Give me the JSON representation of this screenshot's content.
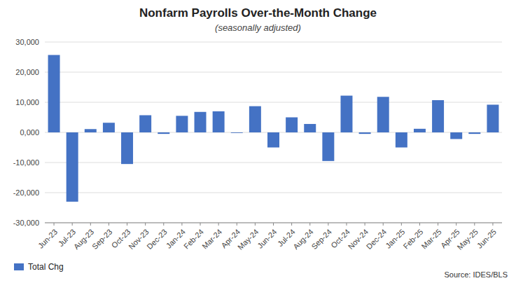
{
  "chart_data": {
    "type": "bar",
    "title": "Nonfarm Payrolls Over-the-Month Change",
    "subtitle": "(seasonally adjusted)",
    "annotations": [
      "Source: IDES/BLS"
    ],
    "categories": [
      "Jun-23",
      "Jul-23",
      "Aug-23",
      "Sep-23",
      "Oct-23",
      "Nov-23",
      "Dec-23",
      "Jan-24",
      "Feb-24",
      "Mar-24",
      "Apr-24",
      "May-24",
      "Jun-24",
      "Jul-24",
      "Aug-24",
      "Sep-24",
      "Oct-24",
      "Nov-24",
      "Dec-24",
      "Jan-25",
      "Feb-25",
      "Mar-25",
      "Apr-25",
      "May-25",
      "Jun-25"
    ],
    "series": [
      {
        "name": "Total Chg",
        "color": "#4472C4",
        "values": [
          25700,
          -23000,
          1100,
          3200,
          -10500,
          5700,
          -500,
          5500,
          6800,
          7000,
          -200,
          8700,
          -5000,
          5000,
          2800,
          -9500,
          12200,
          -500,
          11800,
          -5000,
          1200,
          10700,
          -2200,
          -500,
          9200
        ]
      }
    ],
    "ylim": [
      -30000,
      30000
    ],
    "yticks": [
      {
        "value": -30000,
        "label": "-30,000"
      },
      {
        "value": -20000,
        "label": "-20,000"
      },
      {
        "value": -10000,
        "label": "-10,000"
      },
      {
        "value": 0,
        "label": "0,000"
      },
      {
        "value": 10000,
        "label": "10,000"
      },
      {
        "value": 20000,
        "label": "20,000"
      },
      {
        "value": 30000,
        "label": "30,000"
      }
    ],
    "grid": true,
    "legend": "lower left"
  }
}
